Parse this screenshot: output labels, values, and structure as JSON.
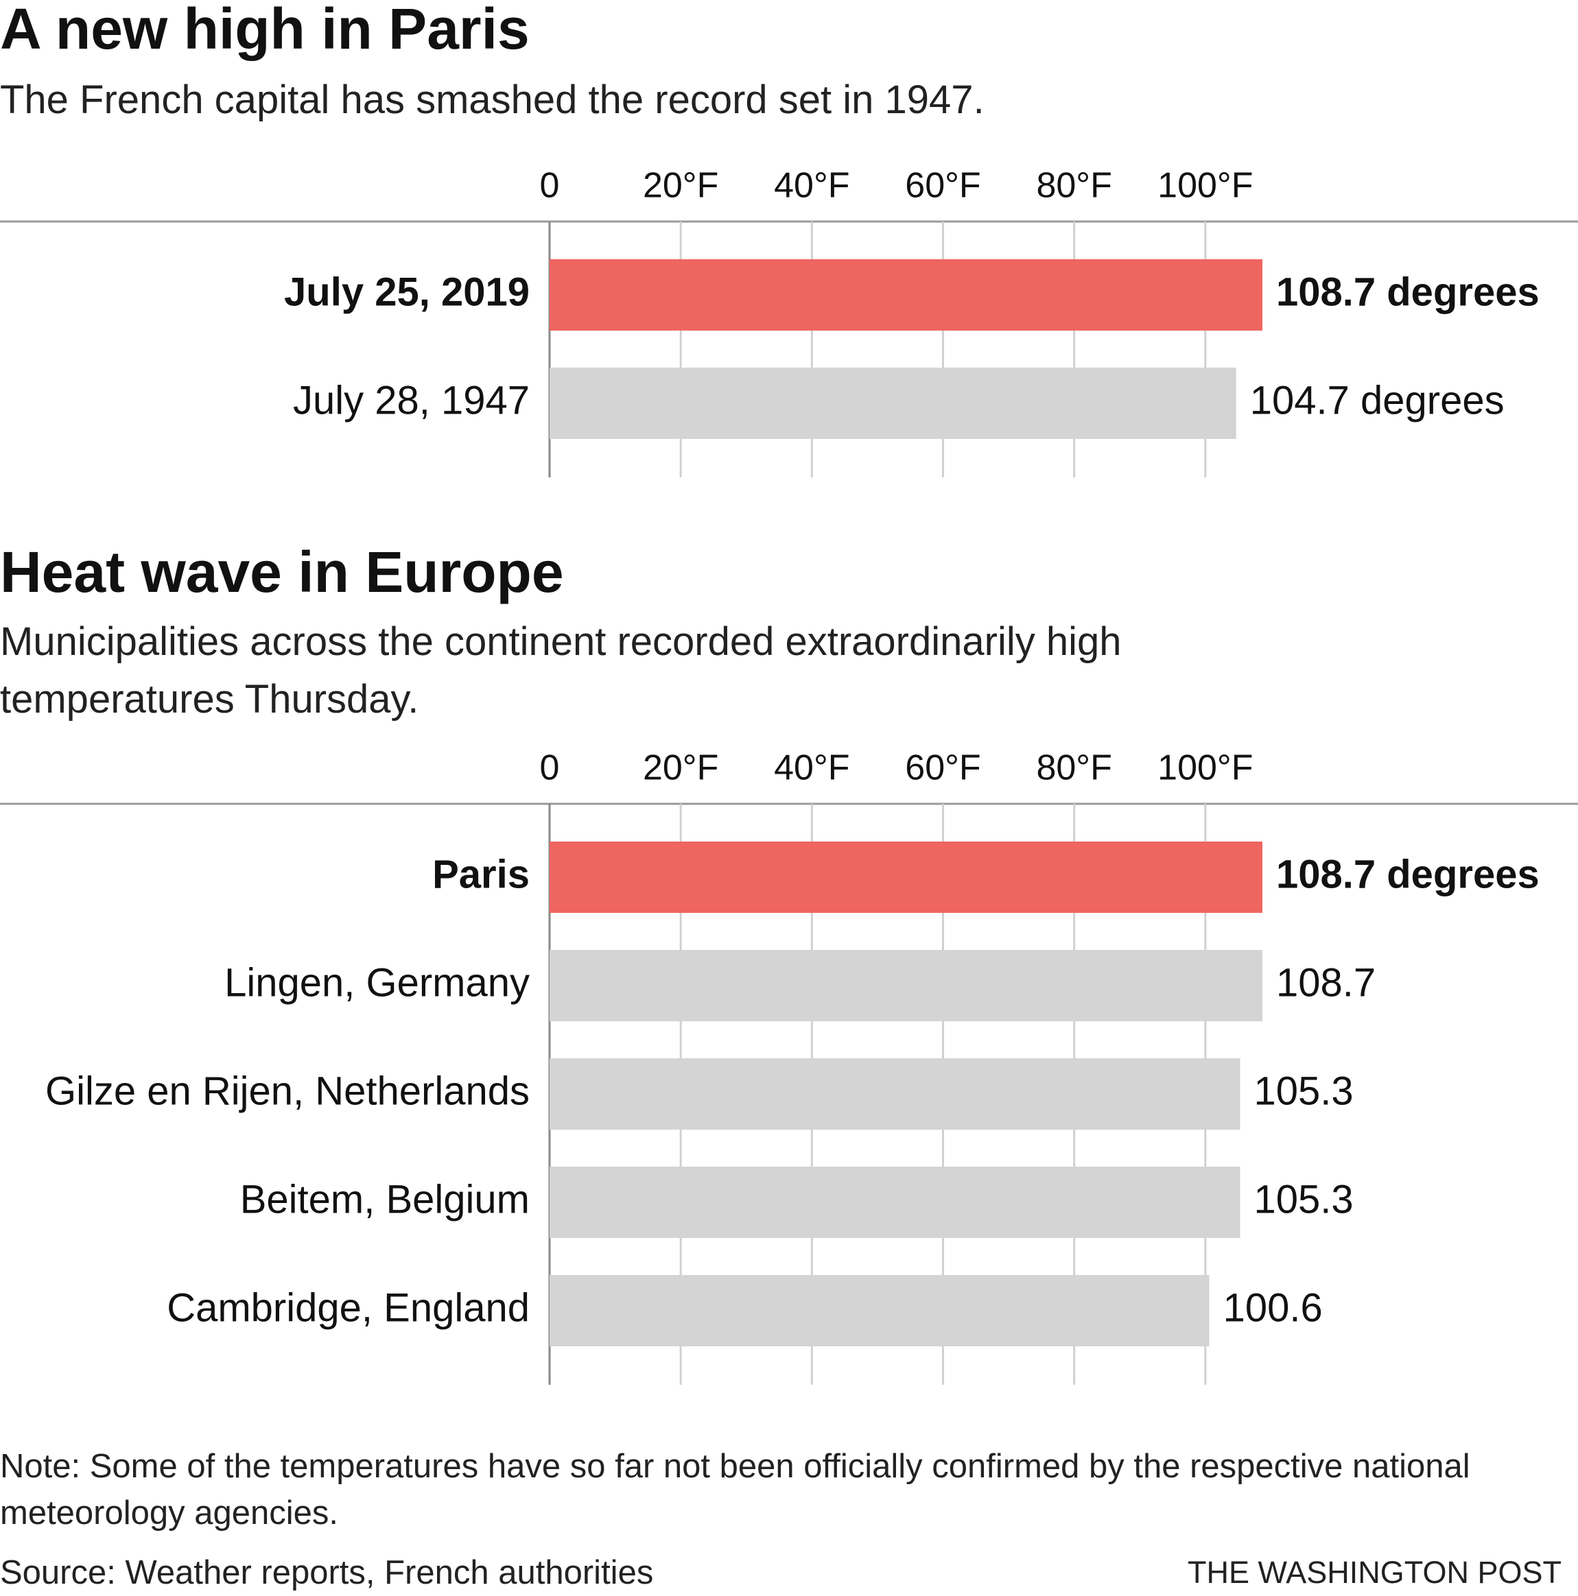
{
  "chart_data": [
    {
      "type": "bar",
      "orientation": "horizontal",
      "title": "A new high in Paris",
      "subtitle": "The French capital has smashed the record set in 1947.",
      "categories": [
        "July 25, 2019",
        "July 28, 1947"
      ],
      "values": [
        108.7,
        104.7
      ],
      "value_labels": [
        "108.7 degrees",
        "104.7 degrees"
      ],
      "colors": [
        "#ef6560",
        "#d4d4d4"
      ],
      "highlight_color": "#ef6560",
      "xlim": [
        0,
        108.7
      ],
      "xticks": [
        0,
        {
          "value": 20,
          "label": "20°F"
        },
        {
          "value": 40,
          "label": "40°F"
        },
        {
          "value": 60,
          "label": "60°F"
        },
        {
          "value": 80,
          "label": "80°F"
        },
        {
          "value": 100,
          "label": "100°F"
        }
      ],
      "grid": true
    },
    {
      "type": "bar",
      "orientation": "horizontal",
      "title": "Heat wave in Europe",
      "subtitle": "Municipalities across the continent recorded extraordinarily high temperatures Thursday.",
      "categories": [
        "Paris",
        "Lingen, Germany",
        "Gilze en Rijen, Netherlands",
        "Beitem, Belgium",
        "Cambridge, England"
      ],
      "values": [
        108.7,
        108.7,
        105.3,
        105.3,
        100.6
      ],
      "value_labels": [
        "108.7 degrees",
        "108.7",
        "105.3",
        "105.3",
        "100.6"
      ],
      "colors": [
        "#ef6560",
        "#d4d4d4",
        "#d4d4d4",
        "#d4d4d4",
        "#d4d4d4"
      ],
      "highlight_color": "#ef6560",
      "xlim": [
        0,
        108.7
      ],
      "xticks": [
        0,
        {
          "value": 20,
          "label": "20°F"
        },
        {
          "value": 40,
          "label": "40°F"
        },
        {
          "value": 60,
          "label": "60°F"
        },
        {
          "value": 80,
          "label": "80°F"
        },
        {
          "value": 100,
          "label": "100°F"
        }
      ],
      "grid": true
    }
  ],
  "note": "Note: Some of the temperatures have so far not been officially confirmed by the respective national meteorology agencies.",
  "source": "Source: Weather reports, French authorities",
  "credit": "THE WASHINGTON POST"
}
